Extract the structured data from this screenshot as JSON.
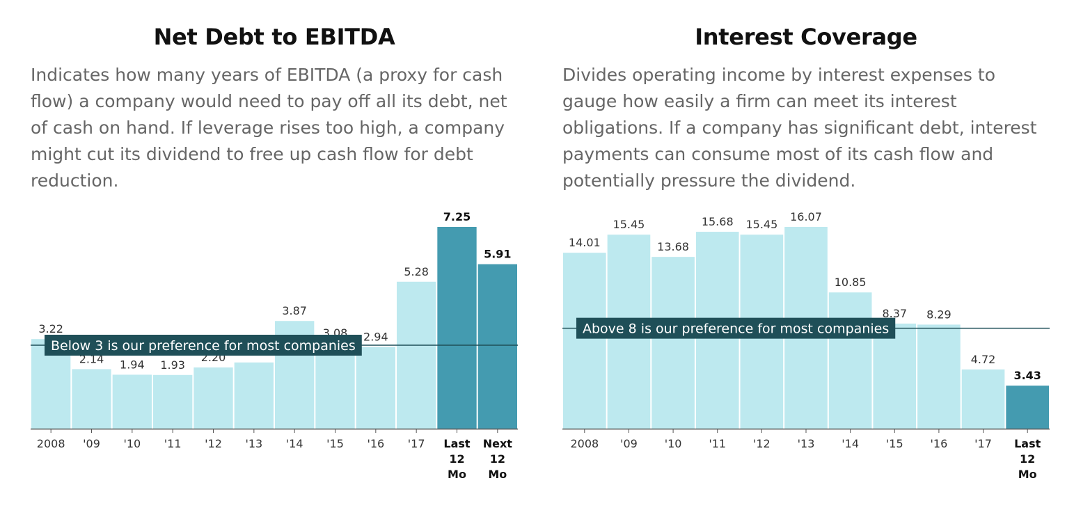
{
  "colors": {
    "bar": "#bde9ef",
    "highlight": "#449bb0",
    "ref": "#1f4f58",
    "axis": "#555555"
  },
  "chart_data": [
    {
      "type": "bar",
      "title": "Net Debt to EBITDA",
      "description": "Indicates how many years of EBITDA (a proxy for cash flow) a company would need to pay off all its debt, net of cash on hand. If leverage rises too high, a company might cut its dividend to free up cash flow for debt reduction.",
      "categories": [
        [
          "2008"
        ],
        [
          "'09"
        ],
        [
          "'10"
        ],
        [
          "'11"
        ],
        [
          "'12"
        ],
        [
          "'13"
        ],
        [
          "'14"
        ],
        [
          "'15"
        ],
        [
          "'16"
        ],
        [
          "'17"
        ],
        [
          "Last",
          "12",
          "Mo"
        ],
        [
          "Next",
          "12",
          "Mo"
        ]
      ],
      "values": [
        3.22,
        2.14,
        1.94,
        1.93,
        2.2,
        2.38,
        3.87,
        3.08,
        2.94,
        5.28,
        7.25,
        5.91
      ],
      "value_labels": [
        "3.22",
        "2.14",
        "1.94",
        "1.93",
        "2.20",
        "",
        "3.87",
        "3.08",
        "2.94",
        "5.28",
        "7.25",
        "5.91"
      ],
      "highlighted": [
        10,
        11
      ],
      "reference": {
        "value": 3,
        "label": "Below 3 is our preference for most companies"
      },
      "ylim": [
        0,
        7.25
      ]
    },
    {
      "type": "bar",
      "title": "Interest Coverage",
      "description": "Divides operating income by interest expenses to gauge how easily a firm can meet its interest obligations. If a company has significant debt, interest payments can consume most of its cash flow and potentially pressure the dividend.",
      "categories": [
        [
          "2008"
        ],
        [
          "'09"
        ],
        [
          "'10"
        ],
        [
          "'11"
        ],
        [
          "'12"
        ],
        [
          "'13"
        ],
        [
          "'14"
        ],
        [
          "'15"
        ],
        [
          "'16"
        ],
        [
          "'17"
        ],
        [
          "Last",
          "12",
          "Mo"
        ]
      ],
      "values": [
        14.01,
        15.45,
        13.68,
        15.68,
        15.45,
        16.07,
        10.85,
        8.37,
        8.29,
        4.72,
        3.43
      ],
      "value_labels": [
        "14.01",
        "15.45",
        "13.68",
        "15.68",
        "15.45",
        "16.07",
        "10.85",
        "8.37",
        "8.29",
        "4.72",
        "3.43"
      ],
      "highlighted": [
        10
      ],
      "reference": {
        "value": 8,
        "label": "Above 8 is our preference for most companies"
      },
      "ylim": [
        0,
        16.07
      ]
    }
  ]
}
